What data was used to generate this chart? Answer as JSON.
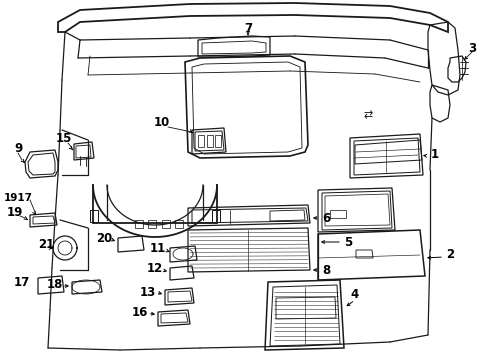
{
  "bg": "#ffffff",
  "lc": "#1a1a1a",
  "lw": 0.9,
  "label_fs": 8.5,
  "fig_w": 4.9,
  "fig_h": 3.6,
  "dpi": 100
}
